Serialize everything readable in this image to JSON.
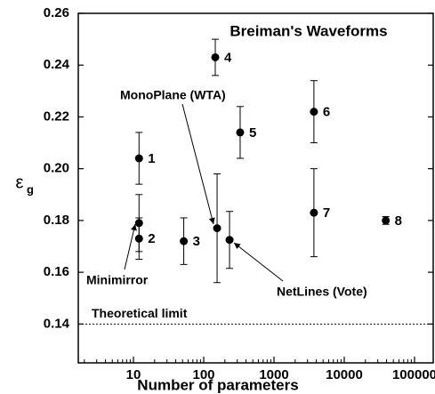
{
  "chart_data": {
    "type": "scatter",
    "title": "Breiman's Waveforms",
    "x_label": "Number of parameters",
    "y_label": "ε",
    "y_label_sub": "g",
    "x_log": true,
    "xlim": [
      1.64,
      184500
    ],
    "xticks": [
      10,
      100,
      1000,
      10000,
      100000
    ],
    "ylim": [
      0.125,
      0.26
    ],
    "yticks": [
      0.14,
      0.16,
      0.18,
      {
        "value": 0.2,
        "label": "0.20"
      },
      0.22,
      0.24,
      0.26
    ],
    "color": "#000000",
    "x": [
      12,
      12,
      12,
      52,
      146,
      155,
      233,
      330,
      3700,
      3700,
      39000
    ],
    "values": [
      0.204,
      0.173,
      0.179,
      0.172,
      0.243,
      0.177,
      0.1725,
      0.214,
      0.222,
      0.183,
      0.18
    ],
    "errors": [
      0.01,
      0.008,
      0.011,
      0.009,
      0.007,
      0.021,
      0.011,
      0.01,
      0.012,
      0.017,
      0.0015
    ],
    "point_labels": [
      "1",
      "2",
      null,
      "3",
      "4",
      null,
      null,
      "5",
      "6",
      "7",
      "8"
    ],
    "annotations": [
      "Minimirror",
      "MonoPlane (WTA)",
      "NetLines (Vote)"
    ],
    "theoretical_limit": {
      "label": "Theoretical limit",
      "value": 0.14
    }
  }
}
